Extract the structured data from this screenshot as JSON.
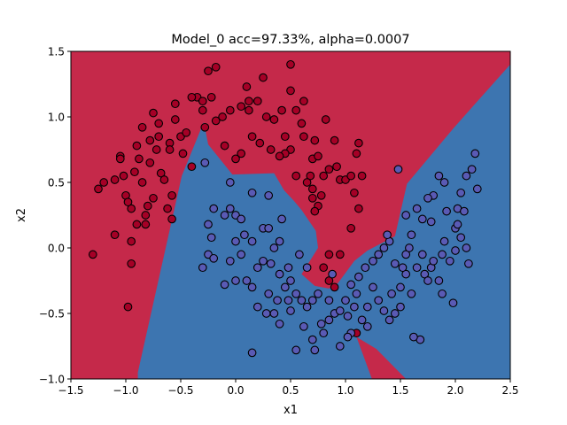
{
  "chart_data": {
    "type": "scatter",
    "title": "Model_0 acc=97.33%, alpha=0.0007",
    "xlabel": "x1",
    "ylabel": "x2",
    "xlim": [
      -1.5,
      2.5
    ],
    "ylim": [
      -1.0,
      1.5
    ],
    "xticks": [
      "−1.5",
      "−1.0",
      "−0.5",
      "0.0",
      "0.5",
      "1.0",
      "1.5",
      "2.0",
      "2.5"
    ],
    "yticks": [
      "−1.0",
      "−0.5",
      "0.0",
      "0.5",
      "1.0",
      "1.5"
    ],
    "grid": false,
    "legend": "none",
    "colors": {
      "class_0_region": "#c5294a",
      "class_1_region": "#3d75b0",
      "class_0_point": "#a50026",
      "class_1_point": "#5a5ab4",
      "point_edge": "#000000"
    },
    "decision_regions": {
      "class_1": [
        [
          [
            -0.89,
            -0.95
          ],
          [
            -0.49,
            0.55
          ],
          [
            -0.29,
            0.96
          ],
          [
            -0.25,
            0.79
          ],
          [
            -0.03,
            0.56
          ],
          [
            0.35,
            0.57
          ],
          [
            0.44,
            0.44
          ],
          [
            0.53,
            0.36
          ],
          [
            0.6,
            0.29
          ],
          [
            0.73,
            0.13
          ],
          [
            0.75,
            0.0
          ],
          [
            0.6,
            -0.2
          ],
          [
            0.72,
            -0.29
          ],
          [
            0.85,
            -0.31
          ],
          [
            0.93,
            -0.27
          ],
          [
            1.08,
            -0.1
          ],
          [
            1.2,
            -0.02
          ],
          [
            1.45,
            0.09
          ],
          [
            1.56,
            0.49
          ],
          [
            1.98,
            0.91
          ],
          [
            2.18,
            1.1
          ],
          [
            2.5,
            1.4
          ],
          [
            2.5,
            -1.0
          ],
          [
            1.55,
            -1.0
          ],
          [
            1.28,
            -0.77
          ],
          [
            1.1,
            -0.68
          ],
          [
            1.24,
            -1.0
          ],
          [
            -0.89,
            -1.0
          ]
        ]
      ]
    },
    "series": [
      {
        "class": 0,
        "points": [
          [
            -1.3,
            -0.05
          ],
          [
            -1.25,
            0.45
          ],
          [
            -1.2,
            0.5
          ],
          [
            -1.1,
            0.52
          ],
          [
            -1.05,
            0.7
          ],
          [
            -1.05,
            0.68
          ],
          [
            -1.02,
            0.55
          ],
          [
            -1.0,
            0.4
          ],
          [
            -0.98,
            -0.45
          ],
          [
            -0.95,
            0.3
          ],
          [
            -0.92,
            0.58
          ],
          [
            -0.9,
            0.78
          ],
          [
            -0.85,
            0.92
          ],
          [
            -0.9,
            0.18
          ],
          [
            -0.95,
            0.05
          ],
          [
            -0.95,
            -0.12
          ],
          [
            -1.1,
            0.1
          ],
          [
            -0.85,
            0.5
          ],
          [
            -0.82,
            0.25
          ],
          [
            -0.8,
            0.32
          ],
          [
            -0.78,
            0.65
          ],
          [
            -0.75,
            1.03
          ],
          [
            -0.72,
            0.75
          ],
          [
            -0.7,
            0.85
          ],
          [
            -0.68,
            0.57
          ],
          [
            -0.65,
            0.52
          ],
          [
            -0.6,
            0.8
          ],
          [
            -0.58,
            0.4
          ],
          [
            -0.55,
            1.1
          ],
          [
            -0.5,
            0.85
          ],
          [
            -0.45,
            0.88
          ],
          [
            -0.4,
            0.62
          ],
          [
            -0.35,
            1.15
          ],
          [
            -0.3,
            1.12
          ],
          [
            -0.22,
            1.15
          ],
          [
            -0.18,
            0.97
          ],
          [
            -0.12,
            1.0
          ],
          [
            -0.05,
            1.05
          ],
          [
            0.05,
            1.08
          ],
          [
            0.12,
            1.05
          ],
          [
            0.2,
            1.12
          ],
          [
            0.28,
            1.0
          ],
          [
            0.35,
            0.98
          ],
          [
            0.42,
            1.05
          ],
          [
            0.5,
            1.2
          ],
          [
            0.55,
            1.05
          ],
          [
            0.6,
            0.95
          ],
          [
            0.62,
            0.85
          ],
          [
            0.5,
            0.75
          ],
          [
            0.45,
            0.72
          ],
          [
            0.4,
            0.7
          ],
          [
            0.32,
            0.75
          ],
          [
            0.22,
            0.8
          ],
          [
            0.15,
            0.85
          ],
          [
            0.05,
            0.72
          ],
          [
            0.0,
            0.68
          ],
          [
            0.7,
            0.68
          ],
          [
            0.72,
            0.82
          ],
          [
            0.75,
            0.7
          ],
          [
            0.68,
            0.55
          ],
          [
            0.7,
            0.45
          ],
          [
            0.75,
            0.32
          ],
          [
            0.8,
            0.55
          ],
          [
            0.85,
            0.6
          ],
          [
            0.9,
            0.82
          ],
          [
            0.95,
            0.52
          ],
          [
            1.0,
            0.52
          ],
          [
            1.05,
            0.55
          ],
          [
            1.1,
            0.72
          ],
          [
            1.12,
            0.8
          ],
          [
            1.15,
            0.55
          ],
          [
            1.12,
            0.3
          ],
          [
            1.05,
            0.15
          ],
          [
            0.95,
            -0.05
          ],
          [
            0.85,
            -0.05
          ],
          [
            0.8,
            -0.15
          ],
          [
            0.85,
            -0.25
          ],
          [
            0.9,
            -0.3
          ],
          [
            1.1,
            -0.65
          ],
          [
            0.45,
            0.85
          ],
          [
            0.55,
            0.55
          ],
          [
            0.65,
            0.5
          ],
          [
            0.7,
            0.38
          ],
          [
            0.78,
            0.4
          ],
          [
            0.5,
            1.4
          ],
          [
            0.25,
            1.3
          ],
          [
            0.1,
            1.23
          ],
          [
            -0.18,
            1.38
          ],
          [
            -0.25,
            1.35
          ],
          [
            -0.4,
            1.15
          ],
          [
            -0.3,
            1.05
          ],
          [
            -0.55,
            0.98
          ],
          [
            -0.7,
            0.95
          ],
          [
            -0.78,
            0.82
          ],
          [
            -0.88,
            0.68
          ],
          [
            -0.75,
            0.38
          ],
          [
            -0.82,
            0.18
          ],
          [
            -0.6,
            0.75
          ],
          [
            -0.28,
            0.92
          ],
          [
            -0.1,
            0.78
          ],
          [
            0.12,
            1.12
          ],
          [
            0.62,
            1.12
          ],
          [
            0.82,
            0.98
          ],
          [
            0.72,
            0.28
          ],
          [
            -0.48,
            0.72
          ],
          [
            -0.58,
            0.22
          ],
          [
            -0.98,
            0.35
          ],
          [
            -0.62,
            0.3
          ],
          [
            1.08,
            0.42
          ],
          [
            0.92,
            0.62
          ]
        ]
      },
      {
        "class": 1,
        "points": [
          [
            -0.28,
            0.65
          ],
          [
            -0.2,
            0.3
          ],
          [
            -0.22,
            0.08
          ],
          [
            -0.25,
            -0.05
          ],
          [
            -0.3,
            -0.15
          ],
          [
            -0.2,
            -0.08
          ],
          [
            -0.1,
            0.25
          ],
          [
            -0.05,
            0.3
          ],
          [
            0.0,
            0.25
          ],
          [
            0.05,
            0.22
          ],
          [
            0.08,
            0.1
          ],
          [
            0.0,
            0.05
          ],
          [
            -0.05,
            -0.1
          ],
          [
            0.05,
            -0.05
          ],
          [
            0.1,
            -0.25
          ],
          [
            0.15,
            -0.3
          ],
          [
            0.2,
            -0.15
          ],
          [
            0.25,
            0.15
          ],
          [
            0.3,
            0.15
          ],
          [
            0.35,
            0.0
          ],
          [
            0.4,
            0.05
          ],
          [
            0.42,
            0.22
          ],
          [
            0.3,
            -0.35
          ],
          [
            0.2,
            -0.45
          ],
          [
            0.28,
            -0.5
          ],
          [
            0.25,
            -0.1
          ],
          [
            0.4,
            -0.2
          ],
          [
            0.45,
            -0.3
          ],
          [
            0.5,
            -0.25
          ],
          [
            0.55,
            -0.35
          ],
          [
            0.48,
            -0.4
          ],
          [
            0.38,
            -0.4
          ],
          [
            0.35,
            -0.5
          ],
          [
            0.4,
            -0.58
          ],
          [
            0.5,
            -0.48
          ],
          [
            0.6,
            -0.4
          ],
          [
            0.65,
            -0.45
          ],
          [
            0.7,
            -0.4
          ],
          [
            0.62,
            -0.6
          ],
          [
            0.7,
            -0.7
          ],
          [
            0.72,
            -0.78
          ],
          [
            0.8,
            -0.65
          ],
          [
            0.85,
            -0.55
          ],
          [
            0.9,
            -0.5
          ],
          [
            0.95,
            -0.48
          ],
          [
            1.0,
            -0.4
          ],
          [
            1.02,
            -0.52
          ],
          [
            1.08,
            -0.45
          ],
          [
            1.1,
            -0.35
          ],
          [
            1.12,
            -0.22
          ],
          [
            1.18,
            -0.15
          ],
          [
            1.25,
            -0.1
          ],
          [
            1.3,
            -0.05
          ],
          [
            1.35,
            0.0
          ],
          [
            1.4,
            0.05
          ],
          [
            1.45,
            -0.12
          ],
          [
            1.5,
            -0.3
          ],
          [
            1.55,
            -0.2
          ],
          [
            1.6,
            -0.35
          ],
          [
            1.65,
            -0.15
          ],
          [
            1.7,
            -0.05
          ],
          [
            1.72,
            -0.2
          ],
          [
            1.75,
            -0.25
          ],
          [
            1.78,
            -0.15
          ],
          [
            1.8,
            -0.1
          ],
          [
            1.85,
            -0.25
          ],
          [
            1.88,
            -0.05
          ],
          [
            1.9,
            0.05
          ],
          [
            1.95,
            -0.1
          ],
          [
            2.0,
            -0.02
          ],
          [
            2.05,
            0.08
          ],
          [
            2.1,
            0.0
          ],
          [
            2.12,
            -0.12
          ],
          [
            2.0,
            0.15
          ],
          [
            2.02,
            0.3
          ],
          [
            2.05,
            0.42
          ],
          [
            2.1,
            0.55
          ],
          [
            2.15,
            0.6
          ],
          [
            2.2,
            0.45
          ],
          [
            2.18,
            0.72
          ],
          [
            1.9,
            0.5
          ],
          [
            1.8,
            0.4
          ],
          [
            1.75,
            0.38
          ],
          [
            1.65,
            0.3
          ],
          [
            1.55,
            0.25
          ],
          [
            1.6,
            0.1
          ],
          [
            1.55,
            -0.05
          ],
          [
            1.5,
            -0.45
          ],
          [
            1.45,
            -0.5
          ],
          [
            1.4,
            -0.55
          ],
          [
            1.35,
            -0.48
          ],
          [
            1.3,
            -0.4
          ],
          [
            1.25,
            -0.3
          ],
          [
            1.2,
            -0.45
          ],
          [
            1.15,
            -0.55
          ],
          [
            1.2,
            -0.6
          ],
          [
            1.05,
            -0.65
          ],
          [
            1.02,
            -0.68
          ],
          [
            0.95,
            -0.75
          ],
          [
            1.68,
            -0.7
          ],
          [
            1.62,
            -0.68
          ],
          [
            1.98,
            -0.42
          ],
          [
            1.85,
            0.55
          ],
          [
            1.78,
            0.2
          ],
          [
            1.7,
            0.22
          ],
          [
            1.92,
            0.28
          ],
          [
            2.02,
            0.18
          ],
          [
            0.15,
            -0.8
          ],
          [
            0.0,
            -0.25
          ],
          [
            -0.1,
            -0.28
          ],
          [
            -0.25,
            0.18
          ],
          [
            -0.05,
            0.5
          ],
          [
            0.15,
            0.42
          ],
          [
            0.3,
            0.4
          ],
          [
            0.48,
            -0.15
          ],
          [
            0.58,
            -0.05
          ],
          [
            0.65,
            -0.15
          ],
          [
            0.15,
            0.05
          ],
          [
            0.32,
            -0.12
          ],
          [
            0.85,
            -0.4
          ],
          [
            0.75,
            -0.35
          ],
          [
            1.38,
            0.1
          ],
          [
            1.42,
            -0.35
          ],
          [
            0.55,
            -0.78
          ],
          [
            0.78,
            -0.58
          ],
          [
            0.88,
            -0.2
          ],
          [
            1.05,
            -0.28
          ],
          [
            1.48,
            0.6
          ],
          [
            1.58,
            0.0
          ],
          [
            1.88,
            -0.35
          ],
          [
            2.08,
            0.28
          ],
          [
            1.52,
            -0.15
          ]
        ]
      }
    ]
  }
}
